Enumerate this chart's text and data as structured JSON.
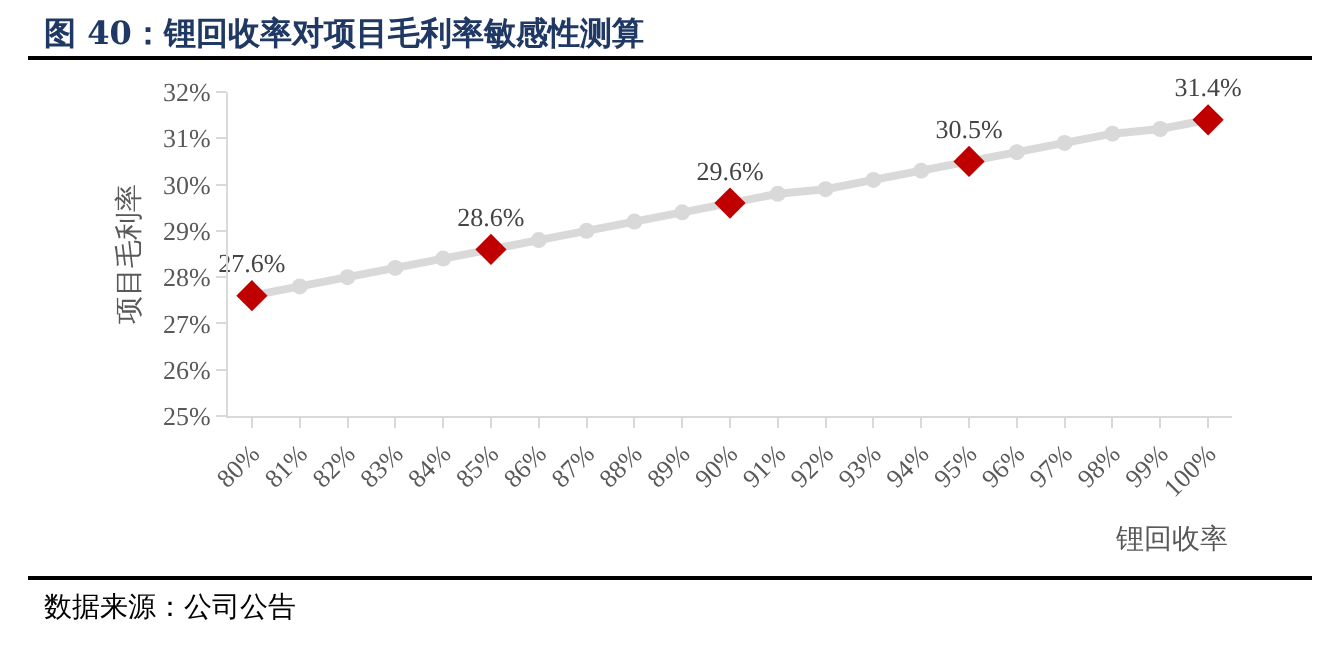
{
  "chart_data": {
    "type": "line",
    "title": "图 40：锂回收率对项目毛利率敏感性测算",
    "xlabel": "锂回收率",
    "ylabel": "项目毛利率",
    "categories": [
      "80%",
      "81%",
      "82%",
      "83%",
      "84%",
      "85%",
      "86%",
      "87%",
      "88%",
      "89%",
      "90%",
      "91%",
      "92%",
      "93%",
      "94%",
      "95%",
      "96%",
      "97%",
      "98%",
      "99%",
      "100%"
    ],
    "series": [
      {
        "color": "#d9d9d9",
        "marker": "circle",
        "values": [
          27.6,
          27.8,
          28.0,
          28.2,
          28.4,
          28.6,
          28.8,
          29.0,
          29.2,
          29.4,
          29.6,
          29.8,
          29.9,
          30.1,
          30.3,
          30.5,
          30.7,
          30.9,
          31.1,
          31.2,
          31.4
        ]
      },
      {
        "type": "scatter",
        "color": "#c00000",
        "marker": "diamond",
        "values": [
          27.6,
          null,
          null,
          null,
          null,
          28.6,
          null,
          null,
          null,
          null,
          29.6,
          null,
          null,
          null,
          null,
          30.5,
          null,
          null,
          null,
          null,
          31.4
        ],
        "value_labels": [
          "27.6%",
          null,
          null,
          null,
          null,
          "28.6%",
          null,
          null,
          null,
          null,
          "29.6%",
          null,
          null,
          null,
          null,
          "30.5%",
          null,
          null,
          null,
          null,
          "31.4%"
        ]
      }
    ],
    "ylim": [
      25,
      32
    ],
    "yticks": [
      {
        "value": 25,
        "label": "25%"
      },
      {
        "value": 26,
        "label": "26%"
      },
      {
        "value": 27,
        "label": "27%"
      },
      {
        "value": 28,
        "label": "28%"
      },
      {
        "value": 29,
        "label": "29%"
      },
      {
        "value": 30,
        "label": "30%"
      },
      {
        "value": 31,
        "label": "31%"
      },
      {
        "value": 32,
        "label": "32%"
      }
    ],
    "grid": false,
    "legend": false,
    "annotations": [
      "数据来源：公司公告"
    ]
  }
}
